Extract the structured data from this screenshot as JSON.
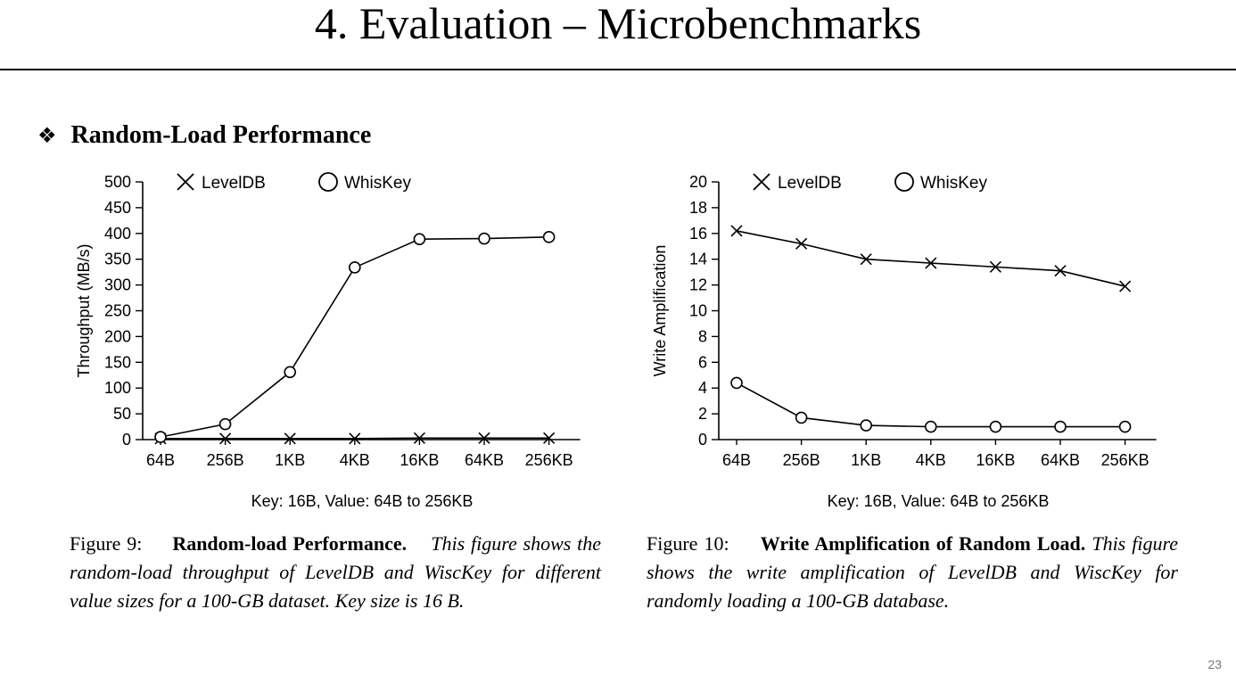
{
  "slide": {
    "title": "4. Evaluation – Microbenchmarks",
    "section_bullet": "❖",
    "section_heading": "Random-Load Performance",
    "page_number": "23"
  },
  "captions": [
    {
      "label": "Figure 9:",
      "bold": "Random-load Performance.",
      "text": "This figure shows the random-load throughput of LevelDB and WiscKey for different value sizes for a 100-GB dataset. Key size is 16 B."
    },
    {
      "label": "Figure 10:",
      "bold": "Write Amplification of Random Load.",
      "text": "This figure shows the write amplification of LevelDB and WiscKey for randomly loading a 100-GB database."
    }
  ],
  "chart_data": [
    {
      "type": "line",
      "title": "",
      "xlabel": "Key: 16B, Value: 64B to 256KB",
      "ylabel": "Throughput (MB/s)",
      "categories": [
        "64B",
        "256B",
        "1KB",
        "4KB",
        "16KB",
        "64KB",
        "256KB"
      ],
      "ylim": [
        0,
        500
      ],
      "yticks": [
        "0",
        "50",
        "100",
        "150",
        "200",
        "250",
        "300",
        "350",
        "400",
        "450",
        "500"
      ],
      "legend_position": "top",
      "series": [
        {
          "name": "LevelDB",
          "marker": "x",
          "values": [
            2,
            2,
            2,
            2,
            3,
            3,
            3
          ]
        },
        {
          "name": "WhisKey",
          "marker": "o",
          "values": [
            5,
            30,
            131,
            334,
            389,
            390,
            393
          ]
        }
      ]
    },
    {
      "type": "line",
      "title": "",
      "xlabel": "Key: 16B, Value: 64B to 256KB",
      "ylabel": "Write Amplification",
      "categories": [
        "64B",
        "256B",
        "1KB",
        "4KB",
        "16KB",
        "64KB",
        "256KB"
      ],
      "ylim": [
        0,
        20
      ],
      "yticks": [
        "0",
        "2",
        "4",
        "6",
        "8",
        "10",
        "12",
        "14",
        "16",
        "18",
        "20"
      ],
      "legend_position": "top",
      "series": [
        {
          "name": "LevelDB",
          "marker": "x",
          "values": [
            16.2,
            15.2,
            14.0,
            13.7,
            13.4,
            13.1,
            11.9
          ]
        },
        {
          "name": "WhisKey",
          "marker": "o",
          "values": [
            4.4,
            1.7,
            1.1,
            1.0,
            1.0,
            1.0,
            1.0
          ]
        }
      ]
    }
  ]
}
